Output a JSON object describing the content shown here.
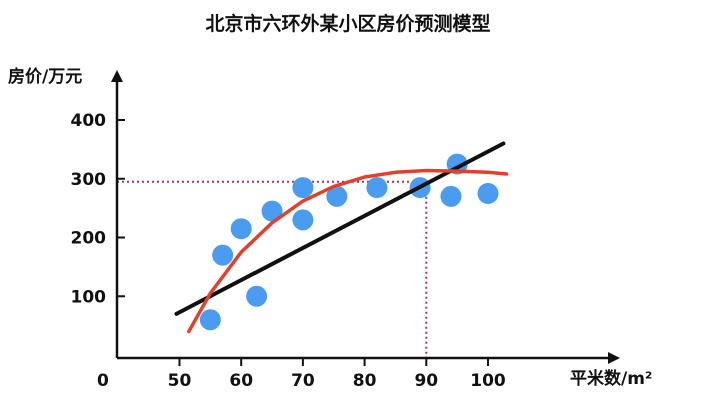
{
  "chart_data": {
    "type": "scatter",
    "title": "北京市六环外某小区房价预测模型",
    "xlabel": "平米数/m²",
    "ylabel": "房价/万元",
    "x_ticks": [
      50,
      60,
      70,
      80,
      90,
      100
    ],
    "y_ticks": [
      100,
      200,
      300,
      400
    ],
    "origin_label": "0",
    "xlim": [
      48,
      104
    ],
    "ylim": [
      0,
      470
    ],
    "points": [
      {
        "x": 55,
        "y": 60
      },
      {
        "x": 57,
        "y": 170
      },
      {
        "x": 60,
        "y": 215
      },
      {
        "x": 62.5,
        "y": 100
      },
      {
        "x": 65,
        "y": 245
      },
      {
        "x": 70,
        "y": 285
      },
      {
        "x": 70,
        "y": 230
      },
      {
        "x": 75.5,
        "y": 270
      },
      {
        "x": 82,
        "y": 285
      },
      {
        "x": 89,
        "y": 285
      },
      {
        "x": 94,
        "y": 270
      },
      {
        "x": 95,
        "y": 325
      },
      {
        "x": 100,
        "y": 275
      }
    ],
    "linear_fit": {
      "x": [
        49.5,
        102.5
      ],
      "y": [
        70,
        360
      ]
    },
    "curve_fit": {
      "x": [
        51.5,
        55,
        60,
        65,
        70,
        75,
        80,
        85,
        90,
        95,
        100,
        103
      ],
      "y": [
        40,
        105,
        175,
        225,
        262,
        287,
        303,
        311,
        314,
        313,
        311,
        308
      ]
    },
    "reference": {
      "x": 90,
      "y": 295
    },
    "colors": {
      "points": "#4a9cf0",
      "linear": "#111111",
      "curve": "#e0402c",
      "reference": "#b0306a",
      "axis": "#111111"
    }
  }
}
